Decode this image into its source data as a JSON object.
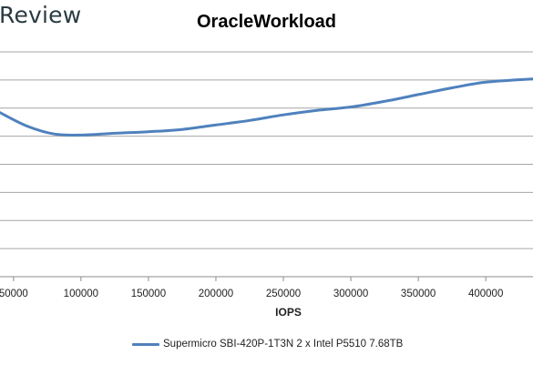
{
  "brand": {
    "text": "Review"
  },
  "chart_data": {
    "type": "line",
    "title": "OracleWorkload",
    "xlabel": "IOPS",
    "ylabel": "",
    "xlim": [
      40000,
      435000
    ],
    "xticks": [
      50000,
      100000,
      150000,
      200000,
      250000,
      300000,
      350000,
      400000
    ],
    "xtick_labels": [
      "50000",
      "100000",
      "150000",
      "200000",
      "250000",
      "300000",
      "350000",
      "400000"
    ],
    "y_gridlines": 9,
    "grid": true,
    "legend_position": "bottom",
    "series": [
      {
        "name": "Supermicro SBI-420P-1T3N 2 x Intel P5510 7.68TB",
        "color": "#4f81bd",
        "x": [
          40000,
          60000,
          80000,
          100000,
          125000,
          150000,
          175000,
          200000,
          225000,
          250000,
          275000,
          300000,
          325000,
          350000,
          375000,
          400000,
          435000
        ],
        "y": [
          7.3,
          6.7,
          6.35,
          6.3,
          6.38,
          6.45,
          6.55,
          6.75,
          6.95,
          7.2,
          7.4,
          7.55,
          7.8,
          8.1,
          8.4,
          8.65,
          8.8
        ]
      }
    ]
  }
}
